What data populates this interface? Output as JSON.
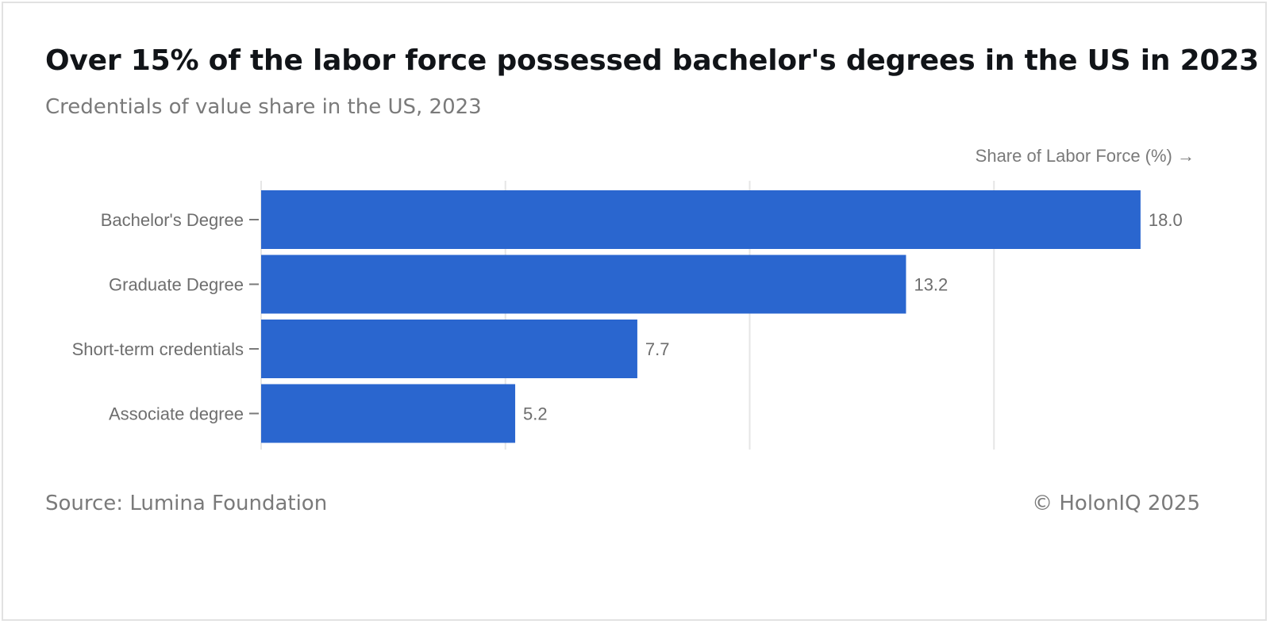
{
  "header": {
    "title": "Over 15% of the labor force possessed bachelor's degrees in the US in 2023",
    "subtitle": "Credentials of value share in the US, 2023"
  },
  "footer": {
    "source": "Source: Lumina Foundation",
    "copyright": "© HolonIQ 2025"
  },
  "colors": {
    "bar": "#2a66cf",
    "grid": "#e6e6e6",
    "tick": "#7a7a7a"
  },
  "chart_data": {
    "type": "bar",
    "orientation": "horizontal",
    "title": "Over 15% of the labor force possessed bachelor's degrees in the US in 2023",
    "subtitle": "Credentials of value share in the US, 2023",
    "xlabel": "Share of Labor Force (%) →",
    "ylabel": "",
    "categories": [
      "Bachelor's Degree",
      "Graduate Degree",
      "Short-term credentials",
      "Associate degree"
    ],
    "values": [
      18.0,
      13.2,
      7.7,
      5.2
    ],
    "value_labels": [
      "18.0",
      "13.2",
      "7.7",
      "5.2"
    ],
    "xlim": [
      0,
      20
    ],
    "grid": true,
    "legend": "none"
  }
}
